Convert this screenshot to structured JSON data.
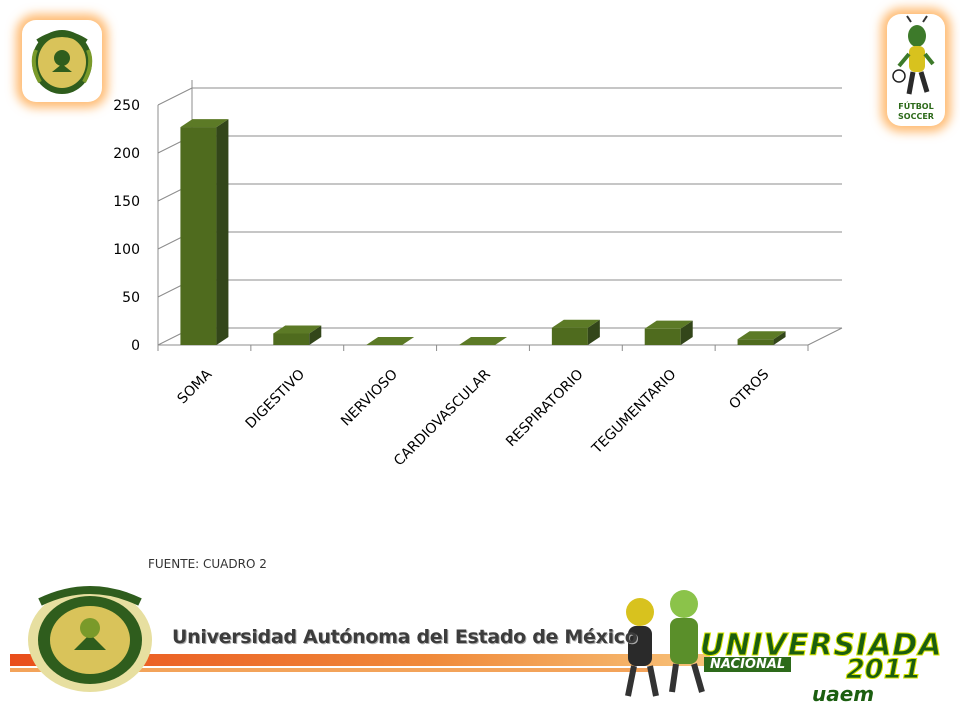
{
  "colors": {
    "bar_front": "#4f6b1e",
    "bar_side": "#33461a",
    "bar_top": "#5c7a26",
    "grid": "#8c8c8c",
    "accent": "#e8541a"
  },
  "logos": {
    "left": "university-seal-icon",
    "right": "soccer-mascot-icon",
    "mascot_caption_line1": "FÚTBOL",
    "mascot_caption_line2": "SOCCER"
  },
  "chart_data": {
    "type": "bar",
    "categories": [
      "SOMA",
      "DIGESTIVO",
      "NERVIOSO",
      "CARDIOVASCULAR",
      "RESPIRATORIO",
      "TEGUMENTARIO",
      "OTROS"
    ],
    "values": [
      227,
      12,
      0,
      0,
      18,
      17,
      6
    ],
    "title": "",
    "xlabel": "",
    "ylabel": "",
    "ylim": [
      0,
      250
    ],
    "yticks": [
      0,
      50,
      100,
      150,
      200,
      250
    ],
    "grid": true,
    "legend": "none",
    "style": "3d-column"
  },
  "source_note": "FUENTE: CUADRO 2",
  "footer": {
    "institution": "Universidad Autónoma del Estado de México",
    "event_title": "UNIVERSIADA",
    "event_subtitle": "NACIONAL",
    "event_year": "2011",
    "event_tag": "uaem"
  }
}
